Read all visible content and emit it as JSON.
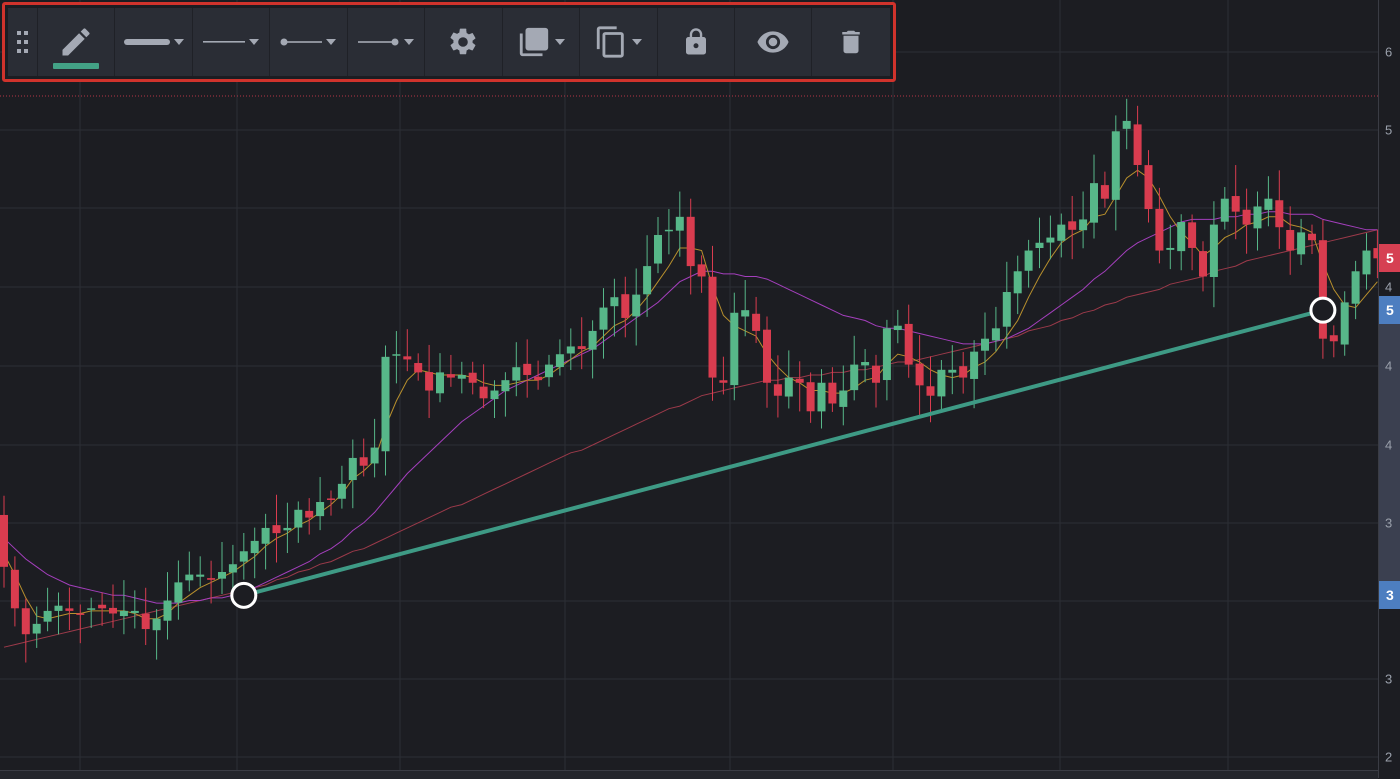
{
  "toolbar": {
    "items": [
      {
        "name": "drag-handle",
        "icon": "grip-dots-icon"
      },
      {
        "name": "drawing-tool",
        "icon": "pencil-icon",
        "active": true
      },
      {
        "name": "line-width",
        "icon": "line-thickness-icon",
        "dropdown": true
      },
      {
        "name": "line-style",
        "icon": "line-style-icon",
        "dropdown": true
      },
      {
        "name": "line-start",
        "icon": "line-start-point-icon",
        "dropdown": true
      },
      {
        "name": "line-end",
        "icon": "line-end-point-icon",
        "dropdown": true
      },
      {
        "name": "settings",
        "icon": "gear-icon"
      },
      {
        "name": "bring-to-front",
        "icon": "layers-icon",
        "dropdown": true
      },
      {
        "name": "clone",
        "icon": "copy-icon",
        "dropdown": true
      },
      {
        "name": "lock",
        "icon": "lock-icon"
      },
      {
        "name": "visibility",
        "icon": "eye-icon"
      },
      {
        "name": "delete",
        "icon": "trash-icon"
      }
    ]
  },
  "colors": {
    "background": "#1c1d22",
    "grid": "#2c2e35",
    "up_candle": "#57b789",
    "down_candle": "#d93c4f",
    "trendline": "#3e9a85",
    "ma_fast": "#b8902d",
    "ma_mid": "#a43fbd",
    "ma_slow": "#9c3a4a",
    "toolbar_bg": "#2a2d35",
    "toolbar_border": "#d0332c",
    "icon": "#a4a9b4",
    "accent": "#43a286",
    "current_price_badge": "#d64052",
    "selection_badge": "#4d7ec0"
  },
  "price_axis": {
    "ticks": [
      "6",
      "5",
      "4",
      "4",
      "4",
      "3",
      "3",
      "2",
      "2"
    ],
    "current_price_label": "5",
    "trendline_end_label": "5",
    "trendline_start_label": "3"
  },
  "chart_data": {
    "type": "candlestick",
    "close": [
      56,
      40,
      30,
      34,
      39,
      41,
      39,
      38,
      40,
      40,
      38,
      39,
      39,
      32,
      36,
      43,
      50,
      53,
      53,
      51,
      54,
      57,
      62,
      66,
      71,
      69,
      71,
      78,
      75,
      81,
      82,
      88,
      98,
      95,
      102,
      137,
      138,
      136,
      131,
      124,
      131,
      129,
      130,
      127,
      121,
      124,
      128,
      133,
      130,
      128,
      134,
      138,
      141,
      140,
      147,
      156,
      160,
      152,
      161,
      172,
      184,
      186,
      191,
      172,
      168,
      129,
      127,
      154,
      155,
      147,
      127,
      122,
      129,
      127,
      116,
      127,
      119,
      124,
      134,
      135,
      127,
      148,
      149,
      134,
      126,
      122,
      132,
      132,
      129,
      139,
      144,
      148,
      162,
      170,
      178,
      181,
      183,
      188,
      186,
      190,
      204,
      198,
      224,
      228,
      211,
      194,
      178,
      179,
      189,
      179,
      168,
      188,
      198,
      193,
      188,
      195,
      198,
      187,
      178,
      185,
      182,
      144,
      143,
      158,
      170,
      178,
      175
    ],
    "ma_fast": [
      61,
      53,
      44,
      37,
      36,
      37,
      38,
      38,
      39,
      39,
      39,
      39,
      38,
      36,
      36,
      38,
      42,
      45,
      48,
      50,
      52,
      54,
      57,
      60,
      64,
      67,
      69,
      72,
      74,
      77,
      80,
      84,
      90,
      93,
      97,
      110,
      120,
      128,
      132,
      131,
      130,
      130,
      130,
      129,
      127,
      126,
      126,
      127,
      128,
      128,
      130,
      133,
      136,
      139,
      141,
      145,
      149,
      151,
      155,
      160,
      166,
      172,
      179,
      179,
      178,
      164,
      153,
      149,
      147,
      145,
      138,
      133,
      129,
      127,
      124,
      124,
      123,
      123,
      125,
      128,
      129,
      134,
      138,
      137,
      135,
      132,
      130,
      129,
      130,
      133,
      135,
      139,
      145,
      151,
      160,
      168,
      175,
      181,
      184,
      186,
      191,
      192,
      199,
      206,
      209,
      206,
      199,
      191,
      185,
      181,
      176,
      179,
      183,
      185,
      188,
      189,
      191,
      191,
      188,
      187,
      185,
      173,
      163,
      157,
      156,
      161,
      166
    ],
    "ma_mid": [
      67,
      63,
      59,
      56,
      53,
      51,
      49,
      48,
      47,
      46,
      45,
      45,
      44,
      43,
      42,
      42,
      42,
      43,
      43,
      44,
      44,
      45,
      46,
      48,
      50,
      52,
      54,
      56,
      58,
      61,
      63,
      66,
      70,
      73,
      77,
      82,
      87,
      92,
      96,
      100,
      104,
      108,
      112,
      115,
      118,
      121,
      124,
      126,
      128,
      130,
      132,
      134,
      136,
      138,
      140,
      143,
      146,
      149,
      152,
      155,
      158,
      162,
      166,
      168,
      170,
      170,
      169,
      169,
      168,
      168,
      167,
      165,
      163,
      161,
      159,
      157,
      155,
      153,
      152,
      151,
      149,
      148,
      148,
      147,
      146,
      145,
      144,
      143,
      142,
      142,
      142,
      143,
      144,
      146,
      148,
      151,
      154,
      157,
      160,
      163,
      167,
      170,
      174,
      178,
      181,
      183,
      185,
      187,
      189,
      190,
      190,
      190,
      191,
      191,
      192,
      192,
      193,
      193,
      192,
      192,
      192,
      190,
      189,
      188,
      187,
      186,
      186
    ],
    "ma_slow": [
      25,
      26,
      27,
      28,
      29,
      30,
      31,
      32,
      33,
      34,
      35,
      36,
      37,
      38,
      39,
      40,
      41,
      42,
      43,
      44,
      45,
      46,
      47,
      48,
      49,
      51,
      52,
      54,
      55,
      57,
      58,
      60,
      62,
      63,
      65,
      67,
      69,
      71,
      73,
      75,
      77,
      79,
      80,
      82,
      84,
      86,
      88,
      90,
      92,
      94,
      96,
      98,
      100,
      101,
      103,
      105,
      107,
      109,
      111,
      113,
      115,
      117,
      118,
      120,
      122,
      123,
      124,
      125,
      126,
      127,
      128,
      128,
      129,
      129,
      130,
      130,
      131,
      131,
      132,
      132,
      133,
      134,
      135,
      135,
      136,
      137,
      138,
      139,
      140,
      141,
      142,
      143,
      144,
      145,
      147,
      148,
      149,
      151,
      152,
      154,
      155,
      157,
      158,
      160,
      161,
      162,
      163,
      165,
      166,
      167,
      168,
      170,
      171,
      172,
      174,
      175,
      176,
      177,
      178,
      179,
      180,
      181,
      182,
      183,
      184,
      185,
      186
    ],
    "trendline": {
      "start": {
        "bar": 22,
        "value": 45
      },
      "end": {
        "bar": 121,
        "value": 155
      }
    },
    "y_range": [
      0,
      265
    ]
  }
}
